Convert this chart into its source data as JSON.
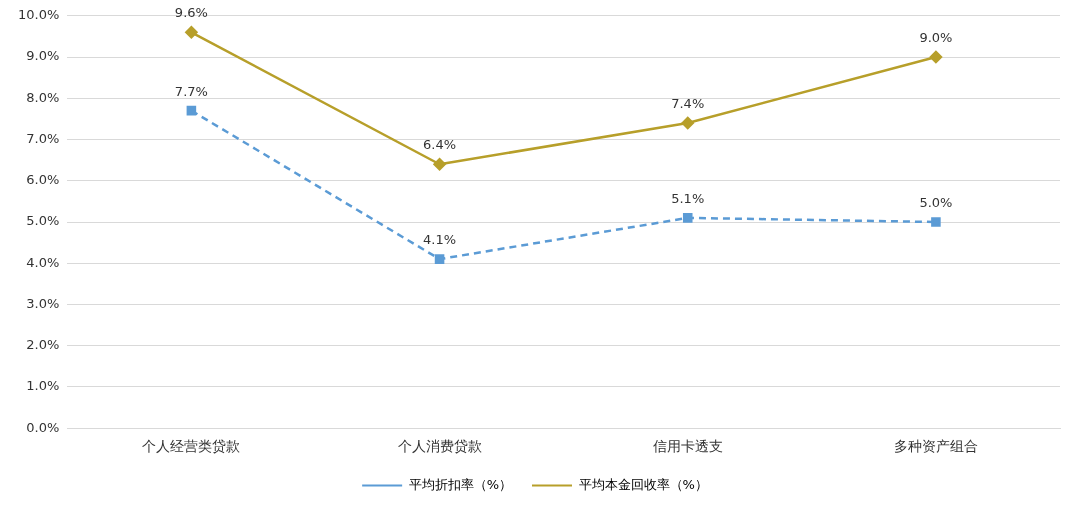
{
  "chart_data": {
    "type": "line",
    "categories": [
      "个人经营类贷款",
      "个人消费贷款",
      "信用卡透支",
      "多种资产组合"
    ],
    "series": [
      {
        "name": "平均折扣率（%）",
        "color": "#5b9bd5",
        "values": [
          7.7,
          4.1,
          5.1,
          5.0
        ],
        "value_labels": [
          "7.7%",
          "4.1%",
          "5.1%",
          "5.0%"
        ],
        "marker": "square",
        "line_style": "dashed"
      },
      {
        "name": "平均本金回收率（%）",
        "color": "#b79f2a",
        "values": [
          9.6,
          6.4,
          7.4,
          9.0
        ],
        "value_labels": [
          "9.6%",
          "6.4%",
          "7.4%",
          "9.0%"
        ],
        "marker": "diamond",
        "line_style": "solid"
      }
    ],
    "ylim": [
      0,
      10
    ],
    "yticks": [
      {
        "value": 0,
        "label": "0.0%"
      },
      {
        "value": 1,
        "label": "1.0%"
      },
      {
        "value": 2,
        "label": "2.0%"
      },
      {
        "value": 3,
        "label": "3.0%"
      },
      {
        "value": 4,
        "label": "4.0%"
      },
      {
        "value": 5,
        "label": "5.0%"
      },
      {
        "value": 6,
        "label": "6.0%"
      },
      {
        "value": 7,
        "label": "7.0%"
      },
      {
        "value": 8,
        "label": "8.0%"
      },
      {
        "value": 9,
        "label": "9.0%"
      },
      {
        "value": 10,
        "label": "10.0%"
      }
    ],
    "grid": "y",
    "legend": "bottom"
  }
}
